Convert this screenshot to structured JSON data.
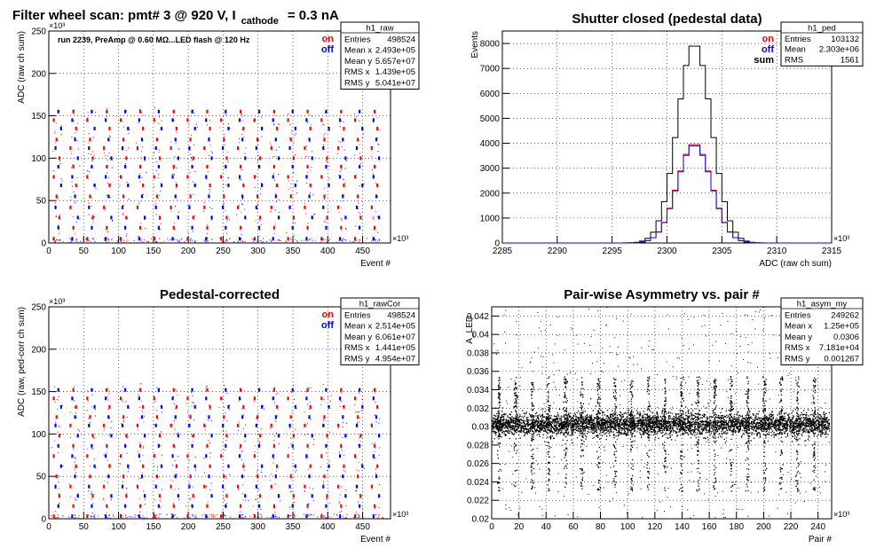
{
  "canvas_title": {
    "prefix": "Filter wheel scan: pmt#   3 @   920 V, I",
    "subscript": "cathode",
    "suffix": "= 0.3 nA"
  },
  "colors": {
    "on": "#ff0000",
    "off": "#0000ff",
    "sum": "#000000",
    "grid": "#000000",
    "frame": "#000000"
  },
  "chart_data": [
    {
      "id": "raw",
      "type": "scatter",
      "title": "",
      "xlabel": "Event #",
      "ylabel": "ADC (raw ch sum)",
      "x_exponent": "×10³",
      "y_exponent": "×10³",
      "xlim": [
        0,
        490
      ],
      "ylim": [
        0,
        250
      ],
      "xticks": [
        0,
        50,
        100,
        150,
        200,
        250,
        300,
        350,
        400,
        450
      ],
      "yticks": [
        0,
        50,
        100,
        150,
        200,
        250
      ],
      "grid": true,
      "annotation": "run 2239, PreAmp @ 0.60 MΩ...LED flash @  120 Hz",
      "legend": [
        "on",
        "off"
      ],
      "stats": {
        "name": "h1_raw",
        "rows": [
          [
            "Entries",
            "498524"
          ],
          [
            "Mean x",
            "2.493e+05"
          ],
          [
            "Mean y",
            "5.657e+07"
          ],
          [
            "RMS x",
            "1.439e+05"
          ],
          [
            "RMS y",
            "5.041e+07"
          ]
        ]
      },
      "levels": [
        5,
        18,
        30,
        42,
        55,
        68,
        78,
        90,
        100,
        112,
        122,
        135,
        145,
        155
      ],
      "period": 24,
      "x_end": 480
    },
    {
      "id": "ped",
      "type": "line",
      "title": "Shutter closed (pedestal data)",
      "xlabel": "ADC (raw ch sum)",
      "ylabel": "Events",
      "x_exponent": "×10³",
      "xlim": [
        2285,
        2315
      ],
      "ylim": [
        0,
        8500
      ],
      "xticks": [
        2285,
        2290,
        2295,
        2300,
        2305,
        2310,
        2315
      ],
      "yticks": [
        0,
        1000,
        2000,
        3000,
        4000,
        5000,
        6000,
        7000,
        8000
      ],
      "grid": true,
      "legend": [
        "on",
        "off",
        "sum"
      ],
      "stats": {
        "name": "h1_ped",
        "rows": [
          [
            "Entries",
            "103132"
          ],
          [
            "Mean",
            "2.303e+06"
          ],
          [
            "RMS",
            "1561"
          ]
        ]
      },
      "series": [
        {
          "name": "sum",
          "mean": 2302.5,
          "sigma": 1.55,
          "peak": 8000
        },
        {
          "name": "on",
          "mean": 2302.5,
          "sigma": 1.55,
          "peak": 4000
        },
        {
          "name": "off",
          "mean": 2302.5,
          "sigma": 1.55,
          "peak": 3950
        }
      ]
    },
    {
      "id": "rawCor",
      "type": "scatter",
      "title": "Pedestal-corrected",
      "xlabel": "Event #",
      "ylabel": "ADC (raw, ped-corr ch sum)",
      "x_exponent": "×10³",
      "y_exponent": "×10³",
      "xlim": [
        0,
        490
      ],
      "ylim": [
        0,
        250
      ],
      "xticks": [
        0,
        50,
        100,
        150,
        200,
        250,
        300,
        350,
        400,
        450
      ],
      "yticks": [
        0,
        50,
        100,
        150,
        200,
        250
      ],
      "grid": true,
      "legend": [
        "on",
        "off"
      ],
      "stats": {
        "name": "h1_rawCor",
        "rows": [
          [
            "Entries",
            "498524"
          ],
          [
            "Mean x",
            "2.514e+05"
          ],
          [
            "Mean y",
            "6.061e+07"
          ],
          [
            "RMS x",
            "1.441e+05"
          ],
          [
            "RMS y",
            "4.954e+07"
          ]
        ]
      },
      "levels": [
        3,
        15,
        27,
        38,
        50,
        62,
        74,
        86,
        98,
        110,
        120,
        132,
        142,
        152
      ],
      "period": 24,
      "x_end": 485
    },
    {
      "id": "asym",
      "type": "scatter",
      "title": "Pair-wise Asymmetry vs. pair #",
      "xlabel": "Pair #",
      "ylabel": "A_LED",
      "x_exponent": "×10³",
      "xlim": [
        0,
        250
      ],
      "ylim": [
        0.02,
        0.043
      ],
      "xticks": [
        0,
        20,
        40,
        60,
        80,
        100,
        120,
        140,
        160,
        180,
        200,
        220,
        240
      ],
      "yticks": [
        0.02,
        0.022,
        0.024,
        0.026,
        0.028,
        0.03,
        0.032,
        0.034,
        0.036,
        0.038,
        0.04,
        0.042
      ],
      "grid": true,
      "stats": {
        "name": "h1_asym_my",
        "rows": [
          [
            "Entries",
            "249262"
          ],
          [
            "Mean x",
            "1.25e+05"
          ],
          [
            "Mean y",
            "0.0306"
          ],
          [
            "RMS x",
            "7.181e+04"
          ],
          [
            "RMS y",
            "0.001267"
          ]
        ]
      },
      "band_center": 0.0303,
      "band_halfwidth": 0.0012,
      "spike_period": 12.2,
      "spike_up": 0.0355,
      "spike_down": 0.023,
      "x_end": 248
    }
  ]
}
